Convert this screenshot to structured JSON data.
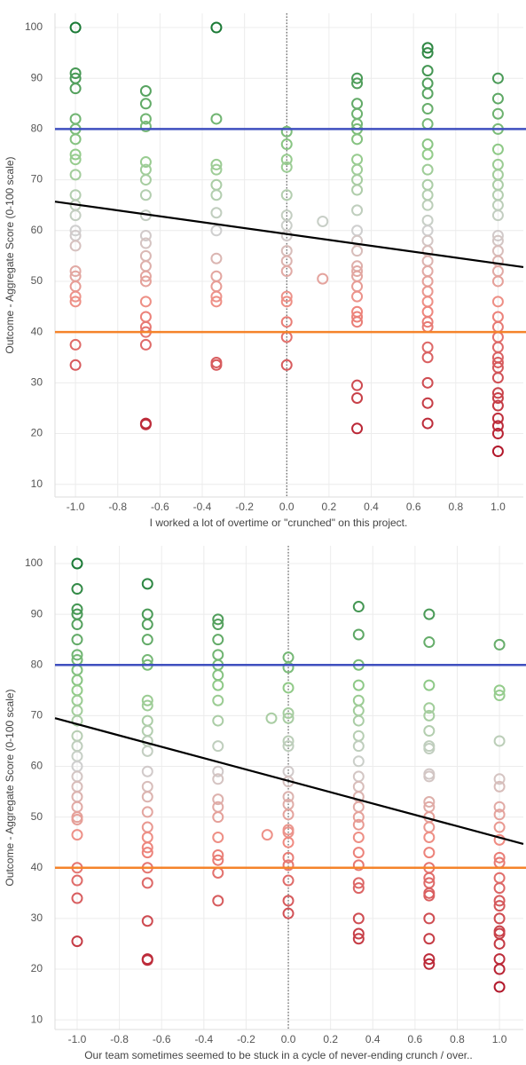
{
  "chart_data": [
    {
      "type": "scatter",
      "xlabel": "I worked a lot of overtime or \"crunched\" on this project.",
      "ylabel": "Outcome - Aggregate Score (0-100 scale)",
      "x": [
        -1,
        -1,
        -1,
        -1,
        -1,
        -1,
        -1,
        -1,
        -1,
        -1,
        -1,
        -1,
        -1,
        -1,
        -1,
        -1,
        -1,
        -1,
        -1,
        -1,
        -1,
        -1,
        -1,
        -0.667,
        -0.667,
        -0.667,
        -0.667,
        -0.667,
        -0.667,
        -0.667,
        -0.667,
        -0.667,
        -0.667,
        -0.667,
        -0.667,
        -0.667,
        -0.667,
        -0.667,
        -0.667,
        -0.667,
        -0.667,
        -0.667,
        -0.667,
        -0.667,
        -0.667,
        -0.333,
        -0.333,
        -0.333,
        -0.333,
        -0.333,
        -0.333,
        -0.333,
        -0.333,
        -0.333,
        -0.333,
        -0.333,
        -0.333,
        -0.333,
        -0.333,
        -0.333,
        0,
        0,
        0,
        0,
        0,
        0,
        0,
        0,
        0,
        0,
        0,
        0,
        0,
        0,
        0,
        0,
        0.333,
        0.333,
        0.333,
        0.333,
        0.333,
        0.333,
        0.333,
        0.333,
        0.333,
        0.333,
        0.333,
        0.333,
        0.333,
        0.333,
        0.333,
        0.333,
        0.333,
        0.333,
        0.333,
        0.333,
        0.333,
        0.333,
        0.333,
        0.333,
        0.333,
        0.333,
        0.667,
        0.667,
        0.667,
        0.667,
        0.667,
        0.667,
        0.667,
        0.667,
        0.667,
        0.667,
        0.667,
        0.667,
        0.667,
        0.667,
        0.667,
        0.667,
        0.667,
        0.667,
        0.667,
        0.667,
        0.667,
        0.667,
        0.667,
        0.667,
        0.667,
        0.667,
        0.667,
        0.667,
        0.667,
        0.667,
        1,
        1,
        1,
        1,
        1,
        1,
        1,
        1,
        1,
        1,
        1,
        1,
        1,
        1,
        1,
        1,
        1,
        1,
        1,
        1,
        1,
        1,
        1,
        1,
        1,
        1,
        1,
        1,
        1,
        1,
        1,
        1,
        1,
        0.17,
        0.17
      ],
      "values": [
        100,
        91,
        90,
        88,
        82,
        80,
        78,
        75,
        74,
        71,
        67,
        65,
        63,
        60,
        59,
        57,
        52,
        51,
        49,
        47,
        46,
        37.5,
        33.5,
        87.5,
        85,
        82,
        80.5,
        73.5,
        72,
        70,
        67,
        63,
        59,
        57.5,
        55,
        53,
        51,
        50,
        46,
        43,
        41,
        40,
        37.5,
        22,
        21.8,
        100,
        82,
        73,
        72,
        69,
        67,
        63.5,
        60,
        54.5,
        51,
        49,
        47,
        46,
        34,
        33.5,
        79.5,
        77,
        74,
        72.5,
        67,
        63,
        61,
        59,
        56,
        54,
        52,
        47,
        46,
        42,
        39,
        33.5,
        90,
        89,
        85,
        83,
        81,
        80,
        78,
        74,
        72,
        70,
        68,
        64,
        60,
        58,
        56,
        53,
        52,
        51,
        49,
        47,
        44,
        43,
        42,
        29.5,
        27,
        21,
        96,
        95,
        91.5,
        89,
        87,
        84,
        81,
        77,
        75,
        72,
        69,
        67,
        65,
        62,
        60,
        58,
        56,
        54,
        52,
        50,
        48,
        46,
        44,
        42,
        41,
        37,
        35,
        30,
        26,
        22,
        90,
        86,
        83,
        80,
        76,
        73,
        71,
        69,
        67,
        65,
        63,
        59,
        58,
        56,
        54,
        52,
        50,
        46,
        43,
        41,
        39,
        37,
        35,
        34,
        33,
        31,
        28,
        27,
        25.5,
        23,
        21.5,
        20,
        16.5,
        61.8,
        50.5
      ],
      "xlim": [
        -1.097,
        1.12
      ],
      "ylim": [
        7.5,
        102.8
      ],
      "xticks": [
        {
          "value": -1,
          "label": "-1.0"
        },
        -0.8,
        -0.6,
        -0.4,
        -0.2,
        {
          "value": 0,
          "label": "0.0"
        },
        0.2,
        0.4,
        0.6,
        0.8,
        {
          "value": 1,
          "label": "1.0"
        }
      ],
      "yticks": [
        10,
        20,
        30,
        40,
        50,
        60,
        70,
        80,
        90,
        100
      ],
      "grid": true,
      "vline": 0,
      "reference_lines": [
        {
          "value": 80,
          "color": "#3f4fbf"
        },
        {
          "value": 40,
          "color": "#f5832a"
        }
      ],
      "trend_line": {
        "x": [
          -1.097,
          1.12
        ],
        "values": [
          65.7,
          52.8
        ],
        "color": "#000000"
      },
      "color_scale": [
        [
          17,
          "#b2182b"
        ],
        [
          45,
          "#f08a80"
        ],
        [
          60,
          "#cfcfcf"
        ],
        [
          75,
          "#93cc8a"
        ],
        [
          100,
          "#1b7a36"
        ]
      ]
    },
    {
      "type": "scatter",
      "xlabel": "Our team sometimes seemed to be stuck in a cycle of never-ending crunch / over..",
      "ylabel": "Outcome - Aggregate Score (0-100 scale)",
      "x": [
        -1,
        -1,
        -1,
        -1,
        -1,
        -1,
        -1,
        -1,
        -1,
        -1,
        -1,
        -1,
        -1,
        -1,
        -1,
        -1,
        -1,
        -1,
        -1,
        -1,
        -1,
        -1,
        -1,
        -1,
        -1,
        -1,
        -1,
        -1,
        -1,
        -0.667,
        -0.667,
        -0.667,
        -0.667,
        -0.667,
        -0.667,
        -0.667,
        -0.667,
        -0.667,
        -0.667,
        -0.667,
        -0.667,
        -0.667,
        -0.667,
        -0.667,
        -0.667,
        -0.667,
        -0.667,
        -0.667,
        -0.667,
        -0.667,
        -0.667,
        -0.667,
        -0.667,
        -0.667,
        -0.333,
        -0.333,
        -0.333,
        -0.333,
        -0.333,
        -0.333,
        -0.333,
        -0.333,
        -0.333,
        -0.333,
        -0.333,
        -0.333,
        -0.333,
        -0.333,
        -0.333,
        -0.333,
        -0.333,
        -0.333,
        -0.333,
        -0.333,
        0,
        0,
        0,
        0,
        0,
        0,
        0,
        0,
        0,
        0,
        0,
        0,
        0,
        0,
        0,
        0,
        0,
        0,
        0,
        0,
        0.333,
        0.333,
        0.333,
        0.333,
        0.333,
        0.333,
        0.333,
        0.333,
        0.333,
        0.333,
        0.333,
        0.333,
        0.333,
        0.333,
        0.333,
        0.333,
        0.333,
        0.333,
        0.333,
        0.333,
        0.333,
        0.333,
        0.333,
        0.333,
        0.667,
        0.667,
        0.667,
        0.667,
        0.667,
        0.667,
        0.667,
        0.667,
        0.667,
        0.667,
        0.667,
        0.667,
        0.667,
        0.667,
        0.667,
        0.667,
        0.667,
        0.667,
        0.667,
        0.667,
        0.667,
        0.667,
        0.667,
        0.667,
        0.667,
        1,
        1,
        1,
        1,
        1,
        1,
        1,
        1,
        1,
        1,
        1,
        1,
        1,
        1,
        1,
        1,
        1,
        1,
        1,
        1,
        1,
        1,
        1,
        -0.08,
        -0.1
      ],
      "values": [
        100,
        95,
        91,
        90,
        88,
        85,
        82,
        81,
        79,
        77,
        75,
        73,
        71,
        69,
        66,
        64,
        62,
        60,
        58,
        56,
        54,
        52,
        50,
        49.5,
        46.5,
        40,
        37.5,
        34,
        25.5,
        96,
        90,
        88,
        85,
        81,
        80,
        73,
        72,
        69,
        67,
        65,
        63,
        59,
        56,
        54,
        51,
        48,
        46,
        44,
        43,
        40,
        37,
        29.5,
        22,
        21.8,
        89,
        88,
        85,
        82,
        80,
        78,
        76,
        73,
        69,
        64,
        59,
        57.5,
        53.5,
        52,
        50,
        46,
        42.5,
        41.5,
        39,
        33.5,
        81.5,
        79.5,
        75.5,
        70.5,
        69.5,
        65,
        64,
        59,
        57,
        54,
        52.5,
        50.5,
        47.5,
        47,
        45,
        42,
        40.5,
        37.5,
        33.5,
        31,
        91.5,
        86,
        80,
        76,
        73,
        71,
        69,
        66,
        64,
        61,
        58,
        56,
        54,
        52,
        50,
        48.5,
        46,
        43,
        40.5,
        37,
        36,
        30,
        27,
        26,
        90,
        84.5,
        76,
        71.5,
        70,
        67,
        64,
        63.5,
        58.5,
        58,
        53,
        52,
        50,
        48,
        46,
        43,
        40,
        38,
        37,
        35,
        34.5,
        30,
        26,
        22,
        21,
        84,
        75,
        74,
        65,
        57.5,
        56,
        52,
        50.5,
        48,
        45.5,
        42,
        41,
        38,
        36,
        33.5,
        32.5,
        30,
        27.5,
        27,
        25,
        22,
        20,
        16.5,
        69.5,
        46.5
      ],
      "xlim": [
        -1.105,
        1.113
      ],
      "ylim": [
        8.1,
        103.5
      ],
      "xticks": [
        {
          "value": -1,
          "label": "-1.0"
        },
        -0.8,
        -0.6,
        -0.4,
        -0.2,
        {
          "value": 0,
          "label": "0.0"
        },
        0.2,
        0.4,
        0.6,
        0.8,
        {
          "value": 1,
          "label": "1.0"
        }
      ],
      "yticks": [
        10,
        20,
        30,
        40,
        50,
        60,
        70,
        80,
        90,
        100
      ],
      "grid": true,
      "vline": 0,
      "reference_lines": [
        {
          "value": 80,
          "color": "#3f4fbf"
        },
        {
          "value": 40,
          "color": "#f5832a"
        }
      ],
      "trend_line": {
        "x": [
          -1.105,
          1.113
        ],
        "values": [
          69.5,
          44.7
        ],
        "color": "#000000"
      },
      "color_scale": [
        [
          17,
          "#b2182b"
        ],
        [
          45,
          "#f08a80"
        ],
        [
          60,
          "#cfcfcf"
        ],
        [
          75,
          "#93cc8a"
        ],
        [
          100,
          "#1b7a36"
        ]
      ]
    }
  ]
}
